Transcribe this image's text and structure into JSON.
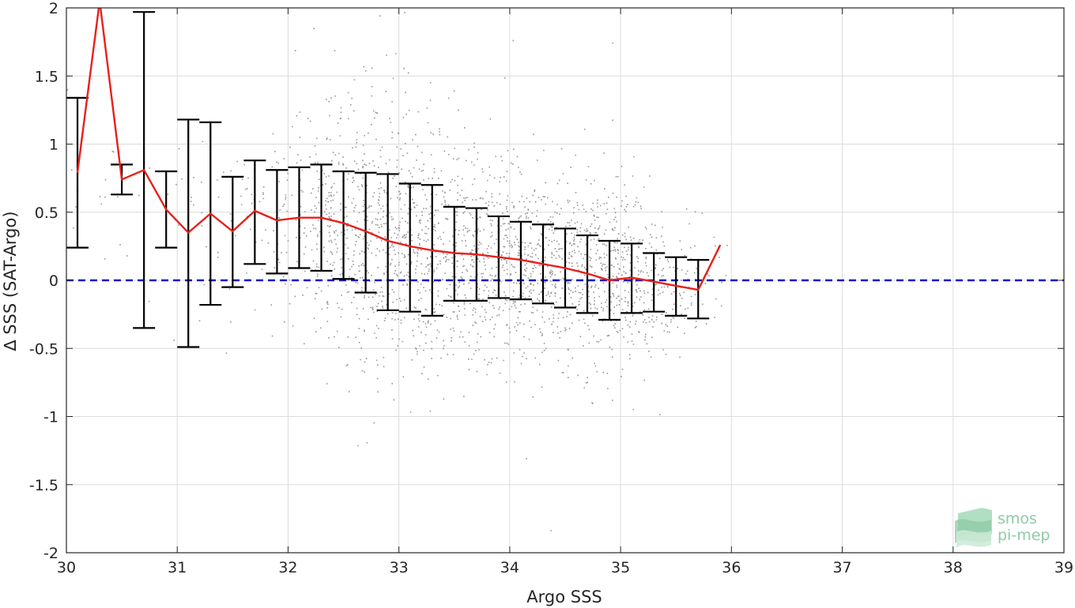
{
  "chart_data": {
    "type": "scatter",
    "xlabel": "Argo SSS",
    "ylabel": "∆ SSS (SAT-Argo)",
    "xlim": [
      30,
      39
    ],
    "ylim": [
      -2,
      2
    ],
    "x_ticks": [
      30,
      31,
      32,
      33,
      34,
      35,
      36,
      37,
      38,
      39
    ],
    "y_ticks": [
      -2,
      -1.5,
      -1,
      -0.5,
      0,
      0.5,
      1,
      1.5,
      2
    ],
    "grid": true,
    "scatter_color": "#8c8c8c",
    "mean_line_color": "#e8201a",
    "errorbar_color": "#000000",
    "reference_line": {
      "y": 0,
      "style": "dashed",
      "color": "#1515c8"
    },
    "series": [
      {
        "type": "line-errorbar",
        "x": [
          30.1,
          30.3,
          30.5,
          30.7,
          30.9,
          31.1,
          31.3,
          31.5,
          31.7,
          31.9,
          32.1,
          32.3,
          32.5,
          32.7,
          32.9,
          33.1,
          33.3,
          33.5,
          33.7,
          33.9,
          34.1,
          34.3,
          34.5,
          34.7,
          34.9,
          35.1,
          35.3,
          35.5,
          35.7,
          35.9
        ],
        "mean": [
          0.79,
          2.05,
          0.74,
          0.81,
          0.52,
          0.35,
          0.49,
          0.36,
          0.51,
          0.44,
          0.46,
          0.46,
          0.42,
          0.36,
          0.29,
          0.25,
          0.22,
          0.2,
          0.19,
          0.17,
          0.15,
          0.12,
          0.09,
          0.05,
          0.0,
          0.02,
          -0.01,
          -0.04,
          -0.07,
          0.26
        ],
        "lower": [
          0.24,
          2.05,
          0.63,
          -0.35,
          0.24,
          -0.49,
          -0.18,
          -0.05,
          0.12,
          0.05,
          0.09,
          0.07,
          0.01,
          -0.09,
          -0.22,
          -0.23,
          -0.26,
          -0.15,
          -0.15,
          -0.13,
          -0.14,
          -0.17,
          -0.2,
          -0.24,
          -0.29,
          -0.24,
          -0.23,
          -0.26,
          -0.28,
          0.26
        ],
        "upper": [
          1.34,
          2.05,
          0.85,
          1.97,
          0.8,
          1.18,
          1.16,
          0.76,
          0.88,
          0.81,
          0.83,
          0.85,
          0.8,
          0.79,
          0.78,
          0.71,
          0.7,
          0.54,
          0.53,
          0.47,
          0.43,
          0.41,
          0.38,
          0.33,
          0.29,
          0.27,
          0.2,
          0.17,
          0.15,
          0.26
        ]
      }
    ],
    "scatter_density": {
      "x": [
        30.0,
        30.5,
        31.0,
        31.5,
        32.0,
        32.5,
        33.0,
        33.5,
        34.0,
        34.5,
        35.0,
        35.5,
        36.0
      ],
      "center": [
        0.8,
        0.75,
        0.5,
        0.45,
        0.45,
        0.4,
        0.3,
        0.2,
        0.15,
        0.1,
        0.05,
        -0.05,
        0.1
      ],
      "spread": [
        0.3,
        0.3,
        0.4,
        0.35,
        0.4,
        0.45,
        0.52,
        0.4,
        0.35,
        0.33,
        0.36,
        0.24,
        0.18
      ],
      "weight": [
        0.02,
        0.03,
        0.05,
        0.08,
        0.25,
        0.8,
        1.0,
        0.95,
        0.9,
        0.95,
        0.85,
        0.25,
        0.0
      ]
    }
  },
  "logo": {
    "line1": "smos",
    "line2": "pi-mep",
    "color": "#8fcaa6"
  }
}
